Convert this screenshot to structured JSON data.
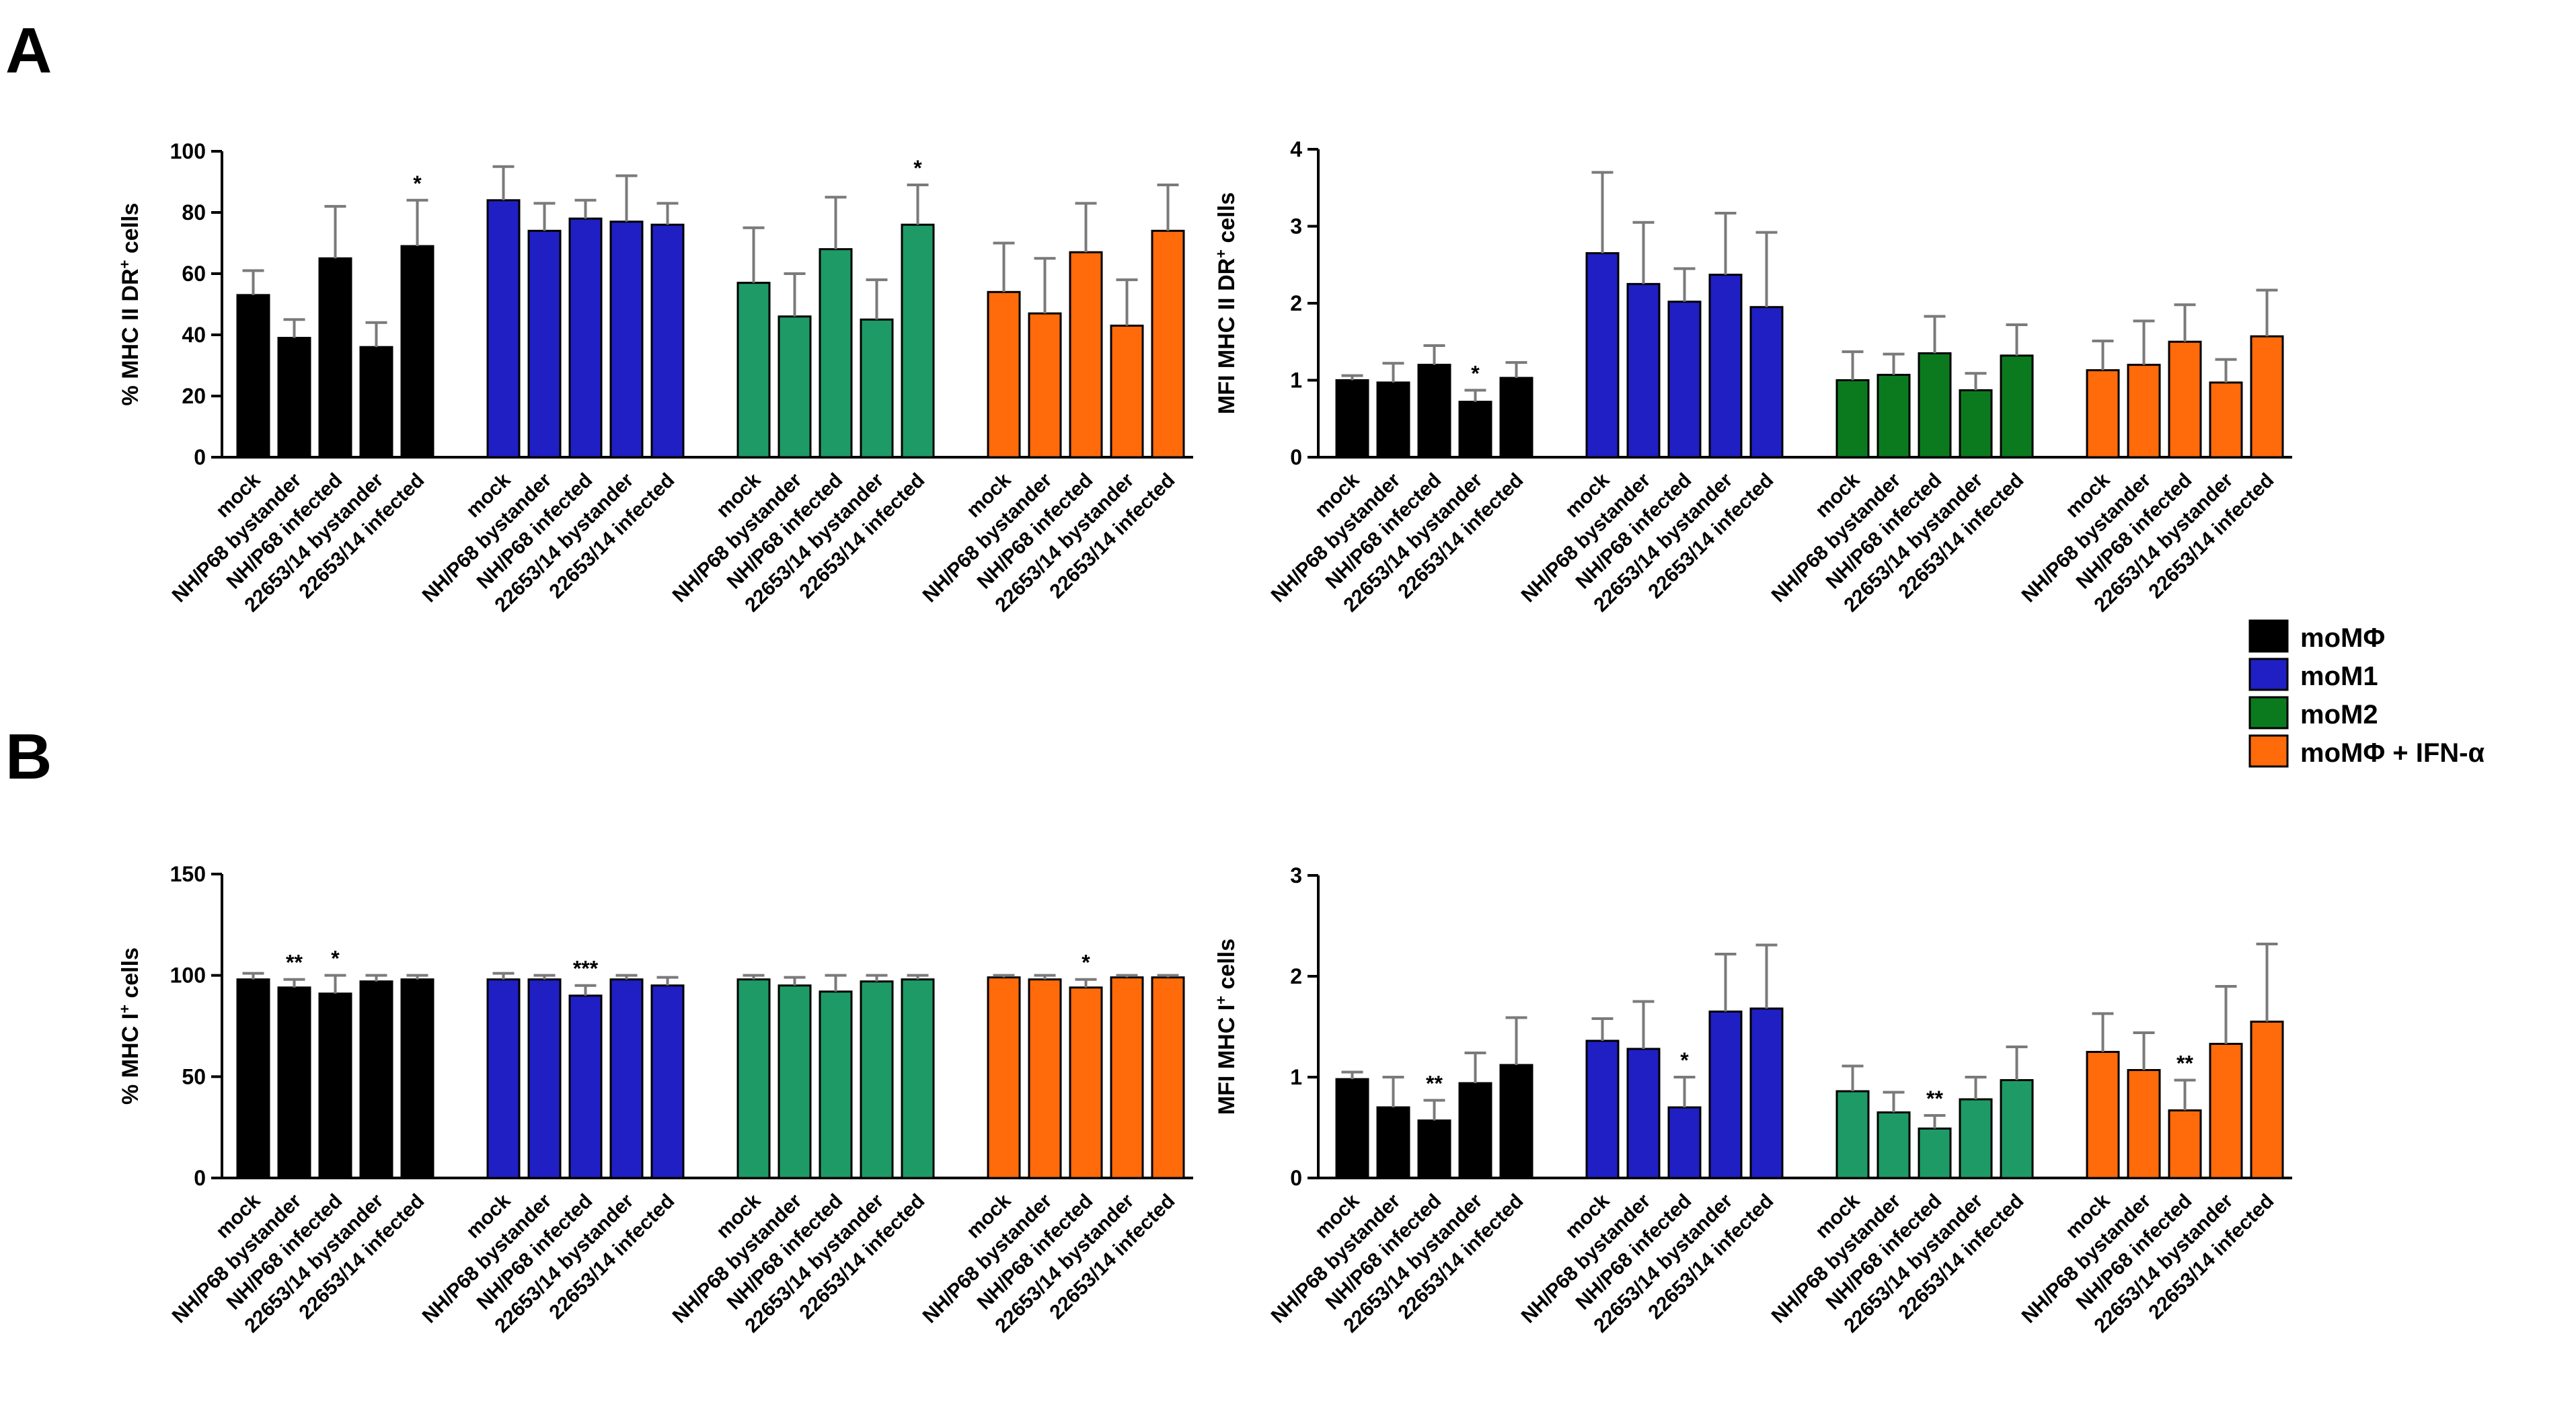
{
  "panel_letters": [
    "A",
    "B"
  ],
  "legend": [
    {
      "label": "moMΦ",
      "color": "#000000"
    },
    {
      "label": "moM1",
      "color": "#1f1fc4"
    },
    {
      "label": "moM2",
      "color": "#0b7a1f"
    },
    {
      "label": "moMΦ + IFN-α",
      "color": "#ff6a0a"
    }
  ],
  "chart_data": [
    {
      "id": "A-left",
      "panel": "A",
      "type": "bar",
      "ylabel": "% MHC II DR",
      "ylabel_sup": "+",
      "ylabel_suffix": " cells",
      "ylim": [
        0,
        100
      ],
      "yticks": [
        0,
        20,
        40,
        60,
        80,
        100
      ],
      "categories": [
        "mock",
        "NH/P68 bystander",
        "NH/P68 infected",
        "22653/14 bystander",
        "22653/14 infected"
      ],
      "groups": [
        {
          "name": "moMΦ",
          "color": "#000000",
          "values": [
            53,
            39,
            65,
            36,
            69
          ],
          "errors": [
            8,
            6,
            17,
            8,
            15
          ],
          "sig": [
            "",
            "",
            "",
            "",
            "*"
          ]
        },
        {
          "name": "moM1",
          "color": "#1f1fc4",
          "values": [
            84,
            74,
            78,
            77,
            76
          ],
          "errors": [
            11,
            9,
            6,
            15,
            7
          ],
          "sig": [
            "",
            "",
            "",
            "",
            ""
          ]
        },
        {
          "name": "moM2",
          "color": "#1e9a66",
          "values": [
            57,
            46,
            68,
            45,
            76
          ],
          "errors": [
            18,
            14,
            17,
            13,
            13
          ],
          "sig": [
            "",
            "",
            "",
            "",
            "*"
          ]
        },
        {
          "name": "moMΦ + IFN-α",
          "color": "#ff6a0a",
          "values": [
            54,
            47,
            67,
            43,
            74
          ],
          "errors": [
            16,
            18,
            16,
            15,
            15
          ],
          "sig": [
            "",
            "",
            "",
            "",
            ""
          ]
        }
      ]
    },
    {
      "id": "A-right",
      "panel": "A",
      "type": "bar",
      "ylabel": "MFI MHC II DR",
      "ylabel_sup": "+",
      "ylabel_suffix": " cells",
      "ylim": [
        0,
        4
      ],
      "yticks": [
        0,
        1,
        2,
        3,
        4
      ],
      "categories": [
        "mock",
        "NH/P68 bystander",
        "NH/P68 infected",
        "22653/14 bystander",
        "22653/14 infected"
      ],
      "groups": [
        {
          "name": "moMΦ",
          "color": "#000000",
          "values": [
            1.0,
            0.97,
            1.2,
            0.72,
            1.03
          ],
          "errors": [
            0.06,
            0.25,
            0.25,
            0.15,
            0.2
          ],
          "sig": [
            "",
            "",
            "",
            "*",
            ""
          ]
        },
        {
          "name": "moM1",
          "color": "#1f1fc4",
          "values": [
            2.65,
            2.25,
            2.02,
            2.37,
            1.95
          ],
          "errors": [
            1.05,
            0.8,
            0.43,
            0.8,
            0.97
          ],
          "sig": [
            "",
            "",
            "",
            "",
            ""
          ]
        },
        {
          "name": "moM2",
          "color": "#0b7a1f",
          "values": [
            1.0,
            1.07,
            1.35,
            0.87,
            1.32
          ],
          "errors": [
            0.37,
            0.27,
            0.48,
            0.22,
            0.4
          ],
          "sig": [
            "",
            "",
            "",
            "",
            ""
          ]
        },
        {
          "name": "moMΦ + IFN-α",
          "color": "#ff6a0a",
          "values": [
            1.13,
            1.2,
            1.5,
            0.97,
            1.57
          ],
          "errors": [
            0.38,
            0.57,
            0.48,
            0.3,
            0.6
          ],
          "sig": [
            "",
            "",
            "",
            "",
            ""
          ]
        }
      ]
    },
    {
      "id": "B-left",
      "panel": "B",
      "type": "bar",
      "ylabel": "% MHC I",
      "ylabel_sup": "+",
      "ylabel_suffix": " cells",
      "ylim": [
        0,
        150
      ],
      "yticks": [
        0,
        50,
        100,
        150
      ],
      "categories": [
        "mock",
        "NH/P68 bystander",
        "NH/P68 infected",
        "22653/14 bystander",
        "22653/14 infected"
      ],
      "groups": [
        {
          "name": "moMΦ",
          "color": "#000000",
          "values": [
            98,
            94,
            91,
            97,
            98
          ],
          "errors": [
            3,
            4,
            9,
            3,
            2
          ],
          "sig": [
            "",
            "**",
            "*",
            "",
            ""
          ]
        },
        {
          "name": "moM1",
          "color": "#1f1fc4",
          "values": [
            98,
            98,
            90,
            98,
            95
          ],
          "errors": [
            3,
            2,
            5,
            2,
            4
          ],
          "sig": [
            "",
            "",
            "***",
            "",
            ""
          ]
        },
        {
          "name": "moM2",
          "color": "#1e9a66",
          "values": [
            98,
            95,
            92,
            97,
            98
          ],
          "errors": [
            2,
            4,
            8,
            3,
            2
          ],
          "sig": [
            "",
            "",
            "",
            "",
            ""
          ]
        },
        {
          "name": "moMΦ + IFN-α",
          "color": "#ff6a0a",
          "values": [
            99,
            98,
            94,
            99,
            99
          ],
          "errors": [
            1,
            2,
            4,
            1,
            1
          ],
          "sig": [
            "",
            "",
            "*",
            "",
            ""
          ]
        }
      ]
    },
    {
      "id": "B-right",
      "panel": "B",
      "type": "bar",
      "ylabel": "MFI MHC I",
      "ylabel_sup": "+",
      "ylabel_suffix": " cells",
      "ylim": [
        0,
        3
      ],
      "yticks": [
        0,
        1,
        2,
        3
      ],
      "categories": [
        "mock",
        "NH/P68 bystander",
        "NH/P68 infected",
        "22653/14 bystander",
        "22653/14 infected"
      ],
      "groups": [
        {
          "name": "moMΦ",
          "color": "#000000",
          "values": [
            0.98,
            0.7,
            0.57,
            0.94,
            1.12
          ],
          "errors": [
            0.07,
            0.3,
            0.2,
            0.3,
            0.47
          ],
          "sig": [
            "",
            "",
            "**",
            "",
            ""
          ]
        },
        {
          "name": "moM1",
          "color": "#1f1fc4",
          "values": [
            1.36,
            1.28,
            0.7,
            1.65,
            1.68
          ],
          "errors": [
            0.22,
            0.47,
            0.3,
            0.57,
            0.63
          ],
          "sig": [
            "",
            "",
            "*",
            "",
            ""
          ]
        },
        {
          "name": "moM2",
          "color": "#1e9a66",
          "values": [
            0.86,
            0.65,
            0.49,
            0.78,
            0.97
          ],
          "errors": [
            0.25,
            0.2,
            0.13,
            0.22,
            0.33
          ],
          "sig": [
            "",
            "",
            "**",
            "",
            ""
          ]
        },
        {
          "name": "moMΦ + IFN-α",
          "color": "#ff6a0a",
          "values": [
            1.25,
            1.07,
            0.67,
            1.33,
            1.55
          ],
          "errors": [
            0.38,
            0.37,
            0.3,
            0.57,
            0.77
          ],
          "sig": [
            "",
            "",
            "**",
            "",
            ""
          ]
        }
      ]
    }
  ]
}
